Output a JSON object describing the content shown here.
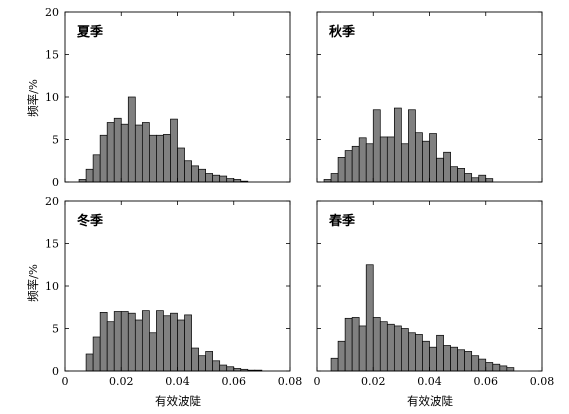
{
  "ylabel": "频率/%",
  "xlabel": "有效波陡",
  "chart_data": [
    {
      "type": "bar",
      "title": "夏季",
      "xlim": [
        0,
        0.08
      ],
      "ylim": [
        0,
        20
      ],
      "bin_width": 0.0025,
      "x": [
        0.00625,
        0.00875,
        0.01125,
        0.01375,
        0.01625,
        0.01875,
        0.02125,
        0.02375,
        0.02625,
        0.02875,
        0.03125,
        0.03375,
        0.03625,
        0.03875,
        0.04125,
        0.04375,
        0.04625,
        0.04875,
        0.05125,
        0.05375,
        0.05625,
        0.05875,
        0.06125,
        0.06375
      ],
      "values": [
        0.3,
        1.5,
        3.2,
        5.5,
        7.0,
        7.5,
        6.8,
        10.0,
        6.7,
        7.0,
        5.5,
        5.5,
        5.6,
        7.4,
        4.0,
        2.5,
        1.9,
        1.5,
        1.0,
        0.8,
        0.7,
        0.4,
        0.3,
        0.1
      ],
      "xticks": [
        "0",
        "0.02",
        "0.04",
        "0.06",
        "0.08"
      ],
      "yticks": [
        "0",
        "5",
        "10",
        "15",
        "20"
      ]
    },
    {
      "type": "bar",
      "title": "秋季",
      "xlim": [
        0,
        0.08
      ],
      "ylim": [
        0,
        20
      ],
      "bin_width": 0.0025,
      "x": [
        0.00375,
        0.00625,
        0.00875,
        0.01125,
        0.01375,
        0.01625,
        0.01875,
        0.02125,
        0.02375,
        0.02625,
        0.02875,
        0.03125,
        0.03375,
        0.03625,
        0.03875,
        0.04125,
        0.04375,
        0.04625,
        0.04875,
        0.05125,
        0.05375,
        0.05625,
        0.05875,
        0.06125
      ],
      "values": [
        0.3,
        1.0,
        2.9,
        3.7,
        4.2,
        5.2,
        4.5,
        8.5,
        5.3,
        5.3,
        8.7,
        4.5,
        8.5,
        5.8,
        4.8,
        5.7,
        2.8,
        3.5,
        1.8,
        1.6,
        1.0,
        0.5,
        0.8,
        0.4
      ],
      "xticks": [
        "0",
        "0.02",
        "0.04",
        "0.06",
        "0.08"
      ],
      "yticks": [
        "0",
        "5",
        "10",
        "15",
        "20"
      ]
    },
    {
      "type": "bar",
      "title": "冬季",
      "xlim": [
        0,
        0.08
      ],
      "ylim": [
        0,
        20
      ],
      "bin_width": 0.0025,
      "x": [
        0.00875,
        0.01125,
        0.01375,
        0.01625,
        0.01875,
        0.02125,
        0.02375,
        0.02625,
        0.02875,
        0.03125,
        0.03375,
        0.03625,
        0.03875,
        0.04125,
        0.04375,
        0.04625,
        0.04875,
        0.05125,
        0.05375,
        0.05625,
        0.05875,
        0.06125,
        0.06375,
        0.06625,
        0.06875
      ],
      "values": [
        2.0,
        4.0,
        6.9,
        5.8,
        7.0,
        7.0,
        6.8,
        6.0,
        7.1,
        4.5,
        7.1,
        6.5,
        6.8,
        6.0,
        6.6,
        2.7,
        1.8,
        2.3,
        1.2,
        0.7,
        0.5,
        0.3,
        0.2,
        0.1,
        0.1
      ],
      "xticks": [
        "0",
        "0.02",
        "0.04",
        "0.06",
        "0.08"
      ],
      "yticks": [
        "0",
        "5",
        "10",
        "15",
        "20"
      ]
    },
    {
      "type": "bar",
      "title": "春季",
      "xlim": [
        0,
        0.08
      ],
      "ylim": [
        0,
        20
      ],
      "bin_width": 0.0025,
      "x": [
        0.00625,
        0.00875,
        0.01125,
        0.01375,
        0.01625,
        0.01875,
        0.02125,
        0.02375,
        0.02625,
        0.02875,
        0.03125,
        0.03375,
        0.03625,
        0.03875,
        0.04125,
        0.04375,
        0.04625,
        0.04875,
        0.05125,
        0.05375,
        0.05625,
        0.05875,
        0.06125,
        0.06375,
        0.06625,
        0.06875
      ],
      "values": [
        1.5,
        3.5,
        6.2,
        6.3,
        5.3,
        12.5,
        6.3,
        5.8,
        5.5,
        5.3,
        5.0,
        4.5,
        4.3,
        3.5,
        2.8,
        4.2,
        3.0,
        2.8,
        2.5,
        2.3,
        1.8,
        1.4,
        1.0,
        0.8,
        0.6,
        0.4
      ],
      "xticks": [
        "0",
        "0.02",
        "0.04",
        "0.06",
        "0.08"
      ],
      "yticks": [
        "0",
        "5",
        "10",
        "15",
        "20"
      ]
    }
  ]
}
